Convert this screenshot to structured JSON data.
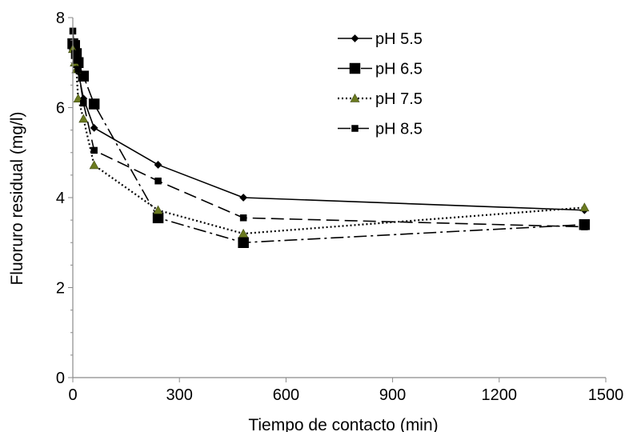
{
  "chart_data": {
    "type": "line",
    "title": "",
    "xlabel": "Tiempo de contacto (min)",
    "ylabel": "Fluoruro residual (mg/l)",
    "xlim": [
      0,
      1500
    ],
    "ylim": [
      0,
      8
    ],
    "xticks": [
      0,
      300,
      600,
      900,
      1200,
      1500
    ],
    "yticks": [
      0,
      2,
      4,
      6,
      8
    ],
    "xtick_labels": [
      "0",
      "300",
      "600",
      "900",
      "1200",
      "1500"
    ],
    "ytick_labels": [
      "0",
      "2",
      "4",
      "6",
      "8"
    ],
    "grid": false,
    "legend_position": "top-right",
    "series": [
      {
        "name": "pH 5.5",
        "line_style": "solid",
        "marker": "diamond",
        "color": "#000000",
        "points": [
          [
            0,
            7.4
          ],
          [
            5,
            7.35
          ],
          [
            10,
            7.1
          ],
          [
            15,
            6.8
          ],
          [
            30,
            6.2
          ],
          [
            60,
            5.55
          ],
          [
            240,
            4.73
          ],
          [
            480,
            4.0
          ],
          [
            1440,
            3.72
          ]
        ]
      },
      {
        "name": "pH 6.5",
        "line_style": "dash-dot",
        "marker": "square",
        "color": "#000000",
        "points": [
          [
            0,
            7.42
          ],
          [
            5,
            7.38
          ],
          [
            10,
            7.2
          ],
          [
            15,
            7.0
          ],
          [
            30,
            6.7
          ],
          [
            60,
            6.08
          ],
          [
            240,
            3.55
          ],
          [
            480,
            3.0
          ],
          [
            1440,
            3.4
          ]
        ]
      },
      {
        "name": "pH 7.5",
        "line_style": "dotted",
        "marker": "triangle",
        "color": "#000000",
        "marker_color": "#6b7a1f",
        "points": [
          [
            0,
            7.3
          ],
          [
            5,
            7.0
          ],
          [
            10,
            6.85
          ],
          [
            15,
            6.2
          ],
          [
            30,
            5.75
          ],
          [
            60,
            4.72
          ],
          [
            240,
            3.72
          ],
          [
            480,
            3.2
          ],
          [
            1440,
            3.78
          ]
        ]
      },
      {
        "name": "pH 8.5",
        "line_style": "long-dash",
        "marker": "small-square",
        "color": "#000000",
        "points": [
          [
            0,
            7.7
          ],
          [
            5,
            7.2
          ],
          [
            10,
            7.05
          ],
          [
            15,
            6.85
          ],
          [
            30,
            6.1
          ],
          [
            60,
            5.05
          ],
          [
            240,
            4.37
          ],
          [
            480,
            3.55
          ],
          [
            1440,
            3.35
          ]
        ]
      }
    ]
  }
}
